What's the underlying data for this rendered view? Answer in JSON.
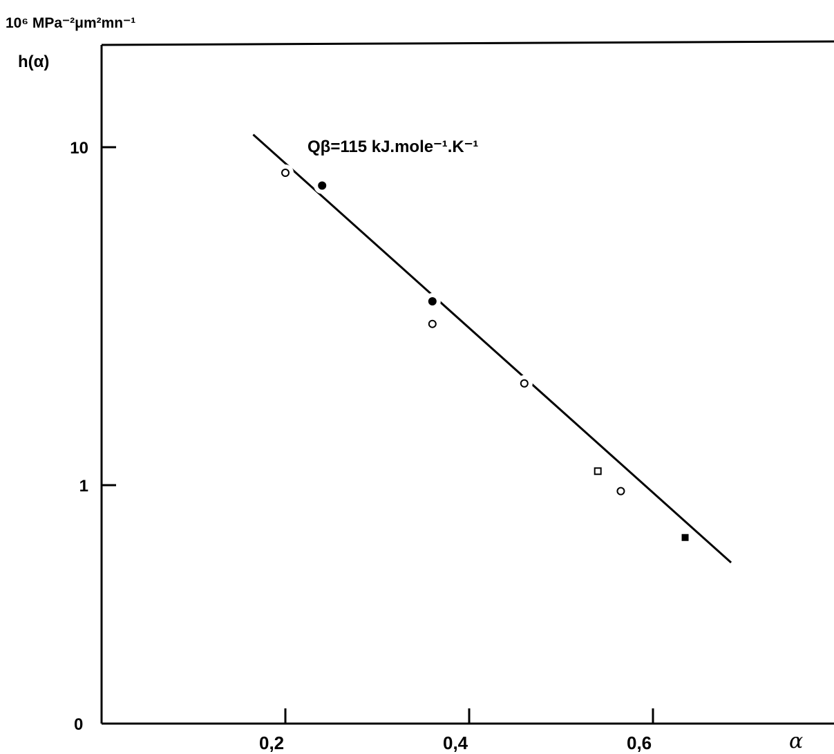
{
  "chart_data": {
    "type": "scatter",
    "y_scale": "log",
    "ylabel_units": "10⁶ MPa⁻²μm²mn⁻¹",
    "ylabel": "h(α)",
    "xlabel": "α",
    "xlim": [
      0.0,
      0.8
    ],
    "ylim": [
      0.1,
      25
    ],
    "x_ticks": [
      0.2,
      0.4,
      0.6
    ],
    "x_tick_labels": [
      "0,2",
      "0,4",
      "0,6"
    ],
    "y_ticks": [
      1,
      10
    ],
    "y_tick_labels": [
      "1",
      "10"
    ],
    "y_origin_label": "0",
    "annotation": "Qβ=115 kJ.mole⁻¹.K⁻¹",
    "fit_line": {
      "x": [
        0.165,
        0.685
      ],
      "y": [
        10.9,
        0.59
      ]
    },
    "series": [
      {
        "marker": "open-circle",
        "points": [
          [
            0.2,
            8.4
          ],
          [
            0.36,
            3.0
          ],
          [
            0.46,
            2.0
          ],
          [
            0.565,
            0.96
          ]
        ]
      },
      {
        "marker": "filled-circle",
        "points": [
          [
            0.24,
            7.7
          ],
          [
            0.36,
            3.5
          ]
        ]
      },
      {
        "marker": "open-square",
        "points": [
          [
            0.54,
            1.1
          ]
        ]
      },
      {
        "marker": "filled-square",
        "points": [
          [
            0.635,
            0.7
          ]
        ]
      }
    ]
  }
}
